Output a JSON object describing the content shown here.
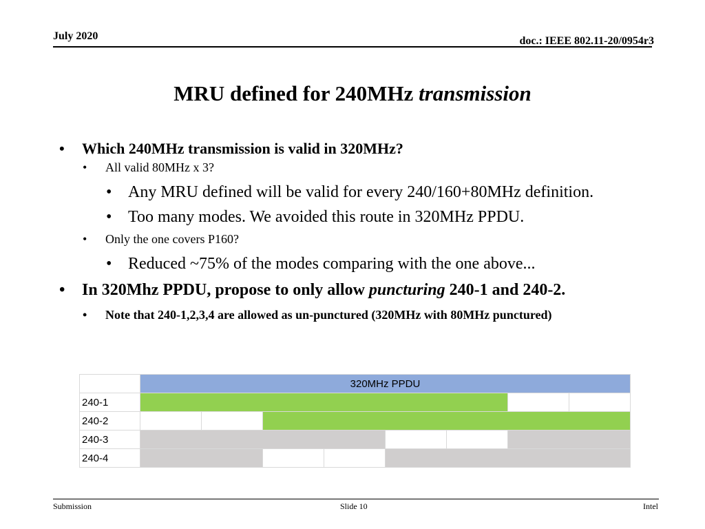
{
  "header": {
    "date": "July 2020",
    "doc": "doc.: IEEE 802.11-20/0954r3"
  },
  "title": {
    "main": "MRU defined for 240MHz ",
    "italic": "transmission"
  },
  "bullets": {
    "b1": "Which 240MHz transmission is valid in 320MHz?",
    "b1_1": "All valid 80MHz x 3?",
    "b1_1_1": "Any MRU defined will be valid for every 240/160+80MHz definition.",
    "b1_1_2": "Too many modes. We avoided this route in 320MHz PPDU.",
    "b1_2": "Only the one covers P160?",
    "b1_2_1": "Reduced ~75% of the modes comparing with the one above...",
    "b2_pre": "In 320Mhz PPDU, propose to only allow ",
    "b2_italic": "puncturing",
    "b2_post": " 240-1 and 240-2.",
    "b2_1": "Note that 240-1,2,3,4 are allowed as un-punctured (320MHz with 80MHz punctured)"
  },
  "table": {
    "header": "320MHz PPDU",
    "rows": [
      "240-1",
      "240-2",
      "240-3",
      "240-4"
    ]
  },
  "colors": {
    "header": "#8eaadb",
    "green": "#92d050",
    "gray": "#d0cece"
  },
  "footer": {
    "left": "Submission",
    "center": "Slide 10",
    "right": "Intel"
  }
}
